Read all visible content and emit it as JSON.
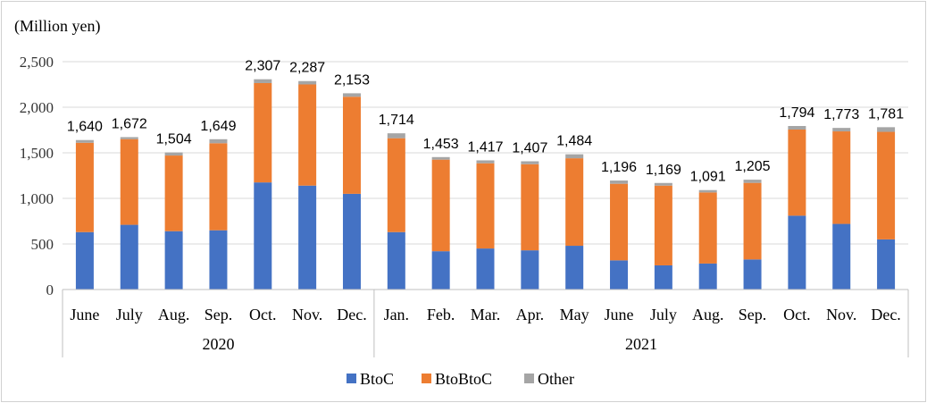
{
  "chart_data": {
    "type": "bar",
    "stacked": true,
    "unit_label": "(Million yen)",
    "months": [
      "June",
      "July",
      "Aug.",
      "Sep.",
      "Oct.",
      "Nov.",
      "Dec.",
      "Jan.",
      "Feb.",
      "Mar.",
      "Apr.",
      "May",
      "June",
      "July",
      "Aug.",
      "Sep.",
      "Oct.",
      "Nov.",
      "Dec."
    ],
    "years": [
      {
        "label": "2020",
        "count": 7
      },
      {
        "label": "2021",
        "count": 12
      }
    ],
    "series": [
      {
        "name": "BtoC",
        "color": "#4472c4",
        "values": [
          630,
          710,
          640,
          650,
          1175,
          1140,
          1050,
          630,
          420,
          450,
          430,
          480,
          320,
          265,
          285,
          330,
          810,
          720,
          550
        ]
      },
      {
        "name": "BtoBtoC",
        "color": "#ed7d31",
        "values": [
          980,
          940,
          830,
          955,
          1090,
          1110,
          1065,
          1030,
          1005,
          935,
          945,
          960,
          840,
          875,
          780,
          840,
          945,
          1015,
          1180
        ]
      },
      {
        "name": "Other",
        "color": "#a5a5a5",
        "values": [
          30,
          22,
          34,
          44,
          42,
          37,
          38,
          54,
          28,
          32,
          32,
          44,
          36,
          29,
          26,
          35,
          39,
          38,
          51
        ]
      }
    ],
    "totals": [
      "1,640",
      "1,672",
      "1,504",
      "1,649",
      "2,307",
      "2,287",
      "2,153",
      "1,714",
      "1,453",
      "1,417",
      "1,407",
      "1,484",
      "1,196",
      "1,169",
      "1,091",
      "1,205",
      "1,794",
      "1,773",
      "1,781"
    ],
    "yaxis": {
      "min": 0,
      "max": 2500,
      "ticks": [
        "0",
        "500",
        "1,000",
        "1,500",
        "2,000",
        "2,500"
      ]
    },
    "grid": true,
    "legend": "bottom"
  }
}
